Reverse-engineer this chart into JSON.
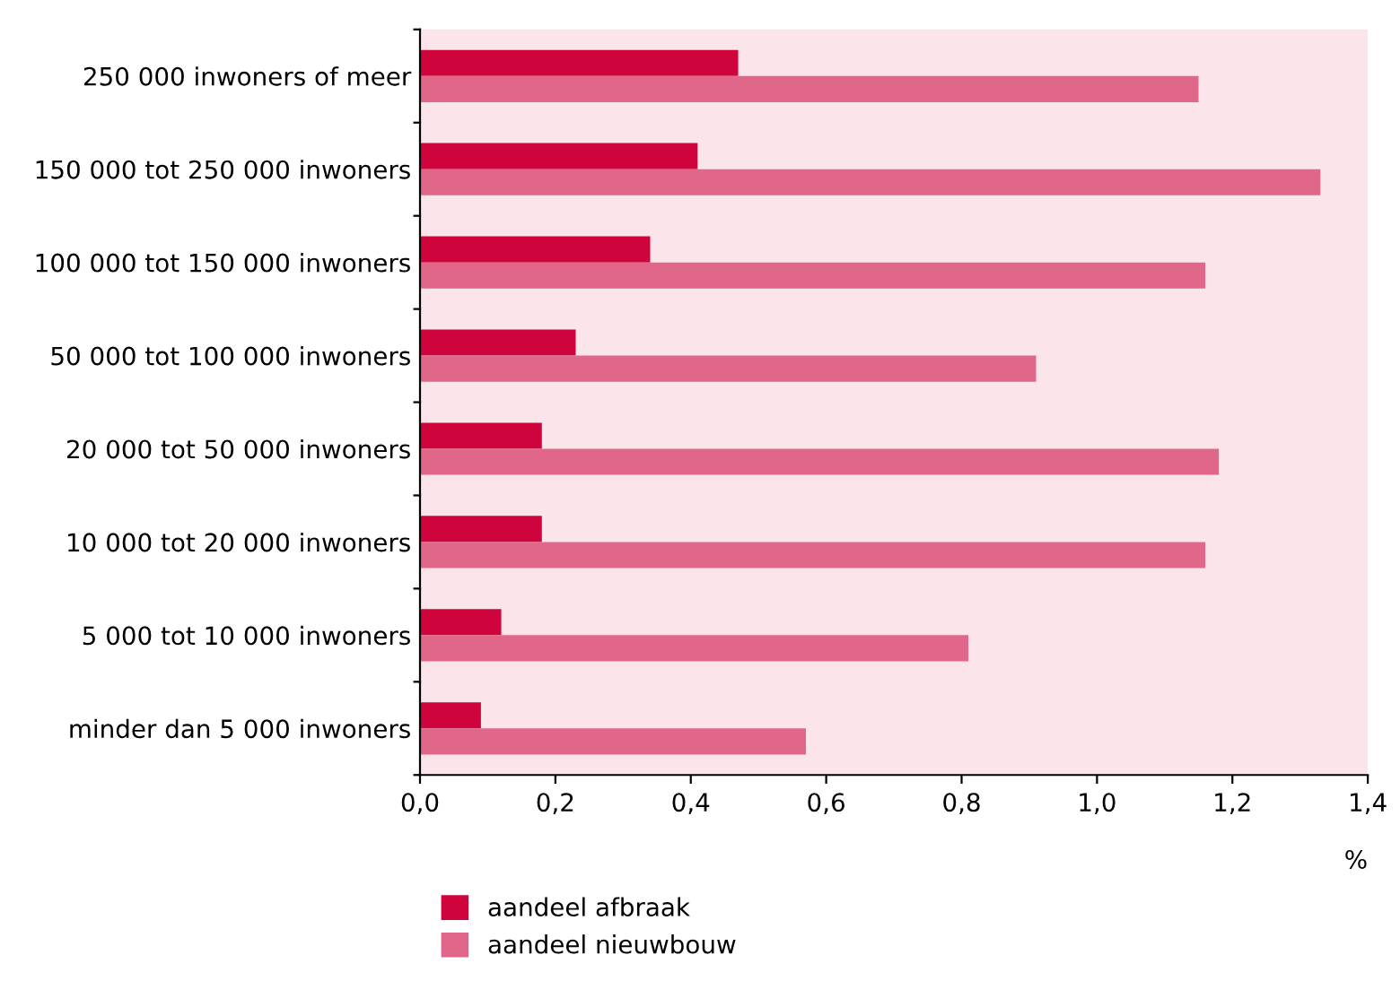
{
  "chart_data": {
    "type": "bar",
    "orientation": "horizontal",
    "xlabel": "%",
    "categories": [
      "250 000 inwoners of meer",
      "150 000 tot 250 000 inwoners",
      "100 000 tot 150 000 inwoners",
      "50 000 tot 100 000 inwoners",
      "20 000 tot 50 000 inwoners",
      "10 000 tot 20 000 inwoners",
      "5 000 tot 10 000 inwoners",
      "minder dan 5 000 inwoners"
    ],
    "series": [
      {
        "name": "aandeel afbraak",
        "color": "#d0043c",
        "values": [
          0.47,
          0.41,
          0.34,
          0.23,
          0.18,
          0.18,
          0.12,
          0.09
        ]
      },
      {
        "name": "aandeel nieuwbouw",
        "color": "#e0668a",
        "values": [
          1.15,
          1.33,
          1.16,
          0.91,
          1.18,
          1.16,
          0.81,
          0.57
        ]
      }
    ],
    "xlim": [
      0,
      1.4
    ],
    "xticks": [
      {
        "value": 0,
        "label": "0,0"
      },
      {
        "value": 0.2,
        "label": "0,2"
      },
      {
        "value": 0.4,
        "label": "0,4"
      },
      {
        "value": 0.6,
        "label": "0,6"
      },
      {
        "value": 0.8,
        "label": "0,8"
      },
      {
        "value": 1.0,
        "label": "1,0"
      },
      {
        "value": 1.2,
        "label": "1,2"
      },
      {
        "value": 1.4,
        "label": "1,4"
      }
    ],
    "grid": false,
    "legend": "bottom left"
  }
}
